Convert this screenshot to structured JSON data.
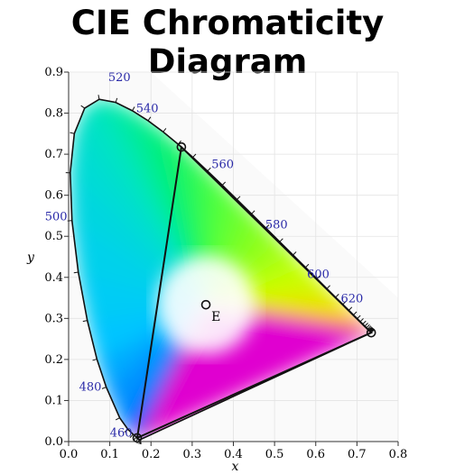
{
  "title": "CIE Chromaticity Diagram",
  "chart_data": {
    "type": "scatter",
    "title": "CIE Chromaticity Diagram",
    "xlabel": "x",
    "ylabel": "y",
    "xlim": [
      0.0,
      0.8
    ],
    "ylim": [
      0.0,
      0.9
    ],
    "x_ticks": [
      "0.0",
      "0.1",
      "0.2",
      "0.3",
      "0.4",
      "0.5",
      "0.6",
      "0.7",
      "0.8"
    ],
    "y_ticks": [
      "0.0",
      "0.1",
      "0.2",
      "0.3",
      "0.4",
      "0.5",
      "0.6",
      "0.7",
      "0.8",
      "0.9"
    ],
    "grid": true,
    "spectral_locus": [
      [
        0.1741,
        0.005
      ],
      [
        0.1738,
        0.0049
      ],
      [
        0.1736,
        0.0049
      ],
      [
        0.1733,
        0.0048
      ],
      [
        0.1726,
        0.0048
      ],
      [
        0.1714,
        0.0051
      ],
      [
        0.1689,
        0.0069
      ],
      [
        0.1644,
        0.0109
      ],
      [
        0.1566,
        0.0177
      ],
      [
        0.144,
        0.0297
      ],
      [
        0.1241,
        0.0578
      ],
      [
        0.0913,
        0.1327
      ],
      [
        0.0687,
        0.2007
      ],
      [
        0.0454,
        0.295
      ],
      [
        0.0235,
        0.4127
      ],
      [
        0.0082,
        0.5384
      ],
      [
        0.0039,
        0.6548
      ],
      [
        0.0139,
        0.7502
      ],
      [
        0.0389,
        0.812
      ],
      [
        0.0743,
        0.8338
      ],
      [
        0.1142,
        0.8262
      ],
      [
        0.1547,
        0.8059
      ],
      [
        0.1929,
        0.7816
      ],
      [
        0.2296,
        0.7543
      ],
      [
        0.2658,
        0.7243
      ],
      [
        0.3016,
        0.6923
      ],
      [
        0.3373,
        0.6589
      ],
      [
        0.3731,
        0.6245
      ],
      [
        0.4087,
        0.5896
      ],
      [
        0.4441,
        0.5547
      ],
      [
        0.4788,
        0.5202
      ],
      [
        0.5125,
        0.4866
      ],
      [
        0.5448,
        0.4544
      ],
      [
        0.5752,
        0.4242
      ],
      [
        0.6029,
        0.3965
      ],
      [
        0.627,
        0.3725
      ],
      [
        0.6482,
        0.3514
      ],
      [
        0.6658,
        0.334
      ],
      [
        0.6801,
        0.3197
      ],
      [
        0.6915,
        0.3083
      ],
      [
        0.7006,
        0.2993
      ],
      [
        0.7079,
        0.292
      ],
      [
        0.714,
        0.2859
      ],
      [
        0.719,
        0.2809
      ],
      [
        0.723,
        0.277
      ],
      [
        0.726,
        0.274
      ],
      [
        0.7283,
        0.2717
      ],
      [
        0.73,
        0.27
      ],
      [
        0.7311,
        0.2689
      ],
      [
        0.732,
        0.268
      ],
      [
        0.7327,
        0.2673
      ],
      [
        0.7334,
        0.2666
      ],
      [
        0.734,
        0.266
      ],
      [
        0.7344,
        0.2656
      ],
      [
        0.7346,
        0.2654
      ],
      [
        0.7347,
        0.2653
      ]
    ],
    "wavelength_labels": [
      {
        "text": "460",
        "nm": 460,
        "x": 0.144,
        "y": 0.0297
      },
      {
        "text": "480",
        "nm": 480,
        "x": 0.0913,
        "y": 0.1327
      },
      {
        "text": "500",
        "nm": 500,
        "x": 0.0082,
        "y": 0.5384
      },
      {
        "text": "520",
        "nm": 520,
        "x": 0.0743,
        "y": 0.8338
      },
      {
        "text": "540",
        "nm": 540,
        "x": 0.2296,
        "y": 0.7543
      },
      {
        "text": "560",
        "nm": 560,
        "x": 0.3731,
        "y": 0.6245
      },
      {
        "text": "580",
        "nm": 580,
        "x": 0.5125,
        "y": 0.4866
      },
      {
        "text": "600",
        "nm": 600,
        "x": 0.627,
        "y": 0.3725
      },
      {
        "text": "620",
        "nm": 620,
        "x": 0.6915,
        "y": 0.3083
      }
    ],
    "gamut_triangle": [
      [
        0.7347,
        0.2653
      ],
      [
        0.2738,
        0.7174
      ],
      [
        0.1666,
        0.0089
      ]
    ],
    "points": [
      {
        "label": "E",
        "x": 0.3333,
        "y": 0.3333
      }
    ]
  }
}
